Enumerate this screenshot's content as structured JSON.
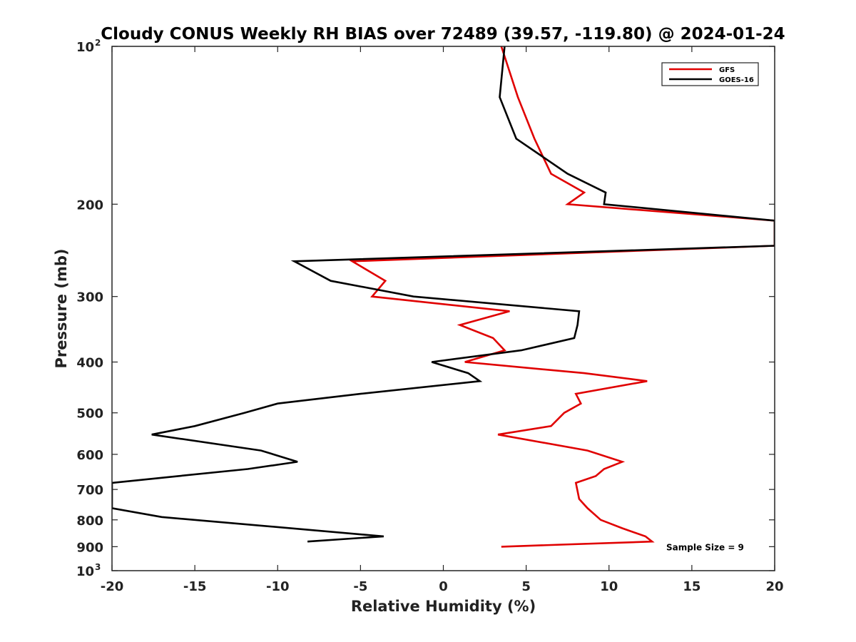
{
  "chart_data": {
    "type": "line",
    "title": "Cloudy CONUS Weekly RH BIAS over 72489 (39.57, -119.80) @ 2024-01-24",
    "xlabel": "Relative Humidity (%)",
    "ylabel": "Pressure (mb)",
    "xlim": [
      -20,
      20
    ],
    "ylim": [
      100,
      1000
    ],
    "y_scale": "log",
    "y_reversed": true,
    "grid": false,
    "legend_position": "top-right",
    "x_ticks": [
      {
        "value": -20,
        "label": "-20"
      },
      {
        "value": -15,
        "label": "-15"
      },
      {
        "value": -10,
        "label": "-10"
      },
      {
        "value": -5,
        "label": "-5"
      },
      {
        "value": 0,
        "label": "0"
      },
      {
        "value": 5,
        "label": "5"
      },
      {
        "value": 10,
        "label": "10"
      },
      {
        "value": 15,
        "label": "15"
      },
      {
        "value": 20,
        "label": "20"
      }
    ],
    "y_ticks": [
      {
        "value": 100,
        "base": "10",
        "exp": "2"
      },
      {
        "value": 200,
        "label": "200"
      },
      {
        "value": 300,
        "label": "300"
      },
      {
        "value": 400,
        "label": "400"
      },
      {
        "value": 500,
        "label": "500"
      },
      {
        "value": 600,
        "label": "600"
      },
      {
        "value": 700,
        "label": "700"
      },
      {
        "value": 800,
        "label": "800"
      },
      {
        "value": 900,
        "label": "900"
      },
      {
        "value": 1000,
        "base": "10",
        "exp": "3"
      }
    ],
    "series": [
      {
        "name": "GFS",
        "color": "#e00000",
        "points": [
          [
            3.5,
            100
          ],
          [
            4.5,
            125
          ],
          [
            5.5,
            150
          ],
          [
            6.5,
            175
          ],
          [
            8.5,
            190
          ],
          [
            7.5,
            200
          ],
          [
            20,
            215
          ],
          [
            20,
            240
          ],
          [
            -5.5,
            257
          ],
          [
            -3.5,
            280
          ],
          [
            -4.3,
            300
          ],
          [
            4.0,
            320
          ],
          [
            1.0,
            340
          ],
          [
            3.0,
            360
          ],
          [
            3.7,
            380
          ],
          [
            1.3,
            400
          ],
          [
            8.5,
            420
          ],
          [
            12.3,
            435
          ],
          [
            8.0,
            460
          ],
          [
            8.3,
            480
          ],
          [
            7.3,
            500
          ],
          [
            6.5,
            530
          ],
          [
            3.3,
            550
          ],
          [
            8.7,
            590
          ],
          [
            10.8,
            620
          ],
          [
            9.7,
            640
          ],
          [
            9.2,
            660
          ],
          [
            8.0,
            680
          ],
          [
            8.2,
            730
          ],
          [
            8.7,
            760
          ],
          [
            9.5,
            800
          ],
          [
            10.8,
            830
          ],
          [
            12.2,
            860
          ],
          [
            12.6,
            880
          ],
          [
            3.5,
            900
          ]
        ]
      },
      {
        "name": "GOES-16",
        "color": "#000000",
        "points": [
          [
            3.7,
            100
          ],
          [
            3.4,
            125
          ],
          [
            4.4,
            150
          ],
          [
            7.5,
            175
          ],
          [
            9.8,
            190
          ],
          [
            9.7,
            200
          ],
          [
            20,
            215
          ],
          [
            20,
            240
          ],
          [
            -9.0,
            257
          ],
          [
            -6.8,
            280
          ],
          [
            -1.8,
            300
          ],
          [
            8.2,
            320
          ],
          [
            8.1,
            340
          ],
          [
            7.9,
            360
          ],
          [
            4.7,
            380
          ],
          [
            -0.7,
            400
          ],
          [
            1.5,
            420
          ],
          [
            2.2,
            435
          ],
          [
            -5.0,
            460
          ],
          [
            -10.0,
            480
          ],
          [
            -12.0,
            500
          ],
          [
            -15.0,
            530
          ],
          [
            -17.6,
            550
          ],
          [
            -11.0,
            590
          ],
          [
            -8.8,
            620
          ],
          [
            -11.8,
            640
          ],
          [
            -16.0,
            660
          ],
          [
            -20,
            680
          ],
          [
            -20,
            760
          ],
          [
            -17.0,
            790
          ],
          [
            -3.6,
            860
          ],
          [
            -8.2,
            880
          ]
        ]
      }
    ],
    "annotations": [
      {
        "text": "Sample Size = 9",
        "x": 15.8,
        "y": 900
      }
    ]
  }
}
